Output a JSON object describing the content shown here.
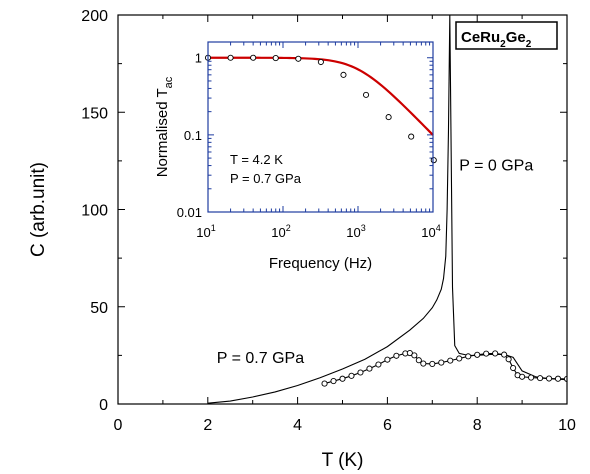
{
  "chart_data": [
    {
      "type": "line",
      "title": "",
      "xlabel": "T (K)",
      "ylabel": "C (arb.unit)",
      "xlim": [
        0,
        10
      ],
      "ylim": [
        0,
        200
      ],
      "x_ticks": [
        0,
        2,
        4,
        6,
        8,
        10
      ],
      "y_ticks": [
        0,
        50,
        100,
        150,
        200
      ],
      "grid": false,
      "legend": "none",
      "compound_label": {
        "main": "CeRu",
        "sub1": "2",
        "mid": "Ge",
        "sub2": "2"
      },
      "annotations": [
        {
          "id": "p0",
          "text": "P = 0 GPa",
          "x": 7.6,
          "y": 120
        },
        {
          "id": "p07",
          "text": "P = 0.7 GPa",
          "x": 2.2,
          "y": 21
        }
      ],
      "series": [
        {
          "name": "P = 0 GPa",
          "marker": "none",
          "color": "#000000",
          "x": [
            2.0,
            2.5,
            3.0,
            3.5,
            4.0,
            4.5,
            5.0,
            5.5,
            6.0,
            6.5,
            6.8,
            7.0,
            7.1,
            7.2,
            7.25,
            7.3,
            7.33,
            7.36,
            7.39,
            7.42,
            7.45,
            7.5,
            7.6,
            7.8,
            8.0,
            8.3,
            8.6,
            8.8,
            9.0,
            9.3,
            9.6,
            10.0
          ],
          "y": [
            0.4,
            1.5,
            3.6,
            6.2,
            9.5,
            13.5,
            18.0,
            23.0,
            29.5,
            38.0,
            44.0,
            49.5,
            53.5,
            59.0,
            64.5,
            76.0,
            100.0,
            140.0,
            200.0,
            130.0,
            60.0,
            30.0,
            26.0,
            25.0,
            25.0,
            25.5,
            25.5,
            24.0,
            17.0,
            14.0,
            13.0,
            12.5
          ]
        },
        {
          "name": "P = 0.7 GPa",
          "marker": "circle",
          "color": "#000000",
          "x": [
            4.6,
            4.8,
            5.0,
            5.2,
            5.4,
            5.6,
            5.8,
            6.0,
            6.2,
            6.4,
            6.5,
            6.6,
            6.7,
            6.8,
            7.0,
            7.2,
            7.4,
            7.6,
            7.8,
            8.0,
            8.2,
            8.4,
            8.6,
            8.7,
            8.8,
            8.9,
            9.0,
            9.2,
            9.4,
            9.6,
            9.8,
            10.0
          ],
          "y": [
            10.5,
            11.8,
            13.0,
            14.5,
            16.2,
            18.2,
            20.3,
            22.8,
            24.8,
            26.0,
            26.2,
            25.0,
            22.5,
            20.8,
            20.6,
            21.3,
            22.3,
            23.4,
            24.5,
            25.3,
            25.9,
            26.0,
            25.4,
            23.0,
            18.5,
            14.8,
            14.0,
            13.6,
            13.3,
            13.1,
            13.0,
            12.9
          ]
        }
      ]
    },
    {
      "type": "line",
      "title": "",
      "xlabel": "Frequency (Hz)",
      "ylabel_main": "Normalised T",
      "ylabel_sub": "ac",
      "xscale": "log",
      "yscale": "log",
      "xlim": [
        10,
        10000
      ],
      "ylim": [
        0.01,
        1.6
      ],
      "x_tick_labels": [
        {
          "v": 10,
          "base": "10",
          "exp": "1"
        },
        {
          "v": 100,
          "base": "10",
          "exp": "2"
        },
        {
          "v": 1000,
          "base": "10",
          "exp": "3"
        },
        {
          "v": 10000,
          "base": "10",
          "exp": "4"
        }
      ],
      "y_tick_labels": [
        {
          "v": 1,
          "text": "1"
        },
        {
          "v": 0.1,
          "text": "0.1"
        },
        {
          "v": 0.01,
          "text": "0.01"
        }
      ],
      "annotations": [
        {
          "id": "temp",
          "text": "T = 4.2 K"
        },
        {
          "id": "pres",
          "text": "P = 0.7 GPa"
        }
      ],
      "curve_color": "#cc0000",
      "fit_fc": 1000,
      "measured": {
        "x": [
          10,
          20,
          40,
          80,
          160,
          320,
          640,
          1280,
          2560,
          5120,
          10240
        ],
        "y": [
          1.0,
          1.0,
          1.0,
          0.99,
          0.97,
          0.88,
          0.6,
          0.33,
          0.17,
          0.095,
          0.047
        ]
      }
    }
  ]
}
